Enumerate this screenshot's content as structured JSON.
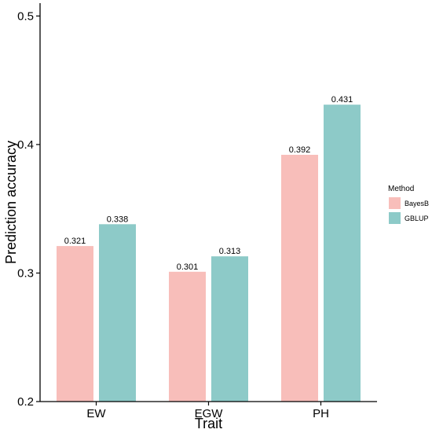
{
  "chart_data": {
    "type": "bar",
    "title": "",
    "xlabel": "Trait",
    "ylabel": "Prediction accuracy",
    "categories": [
      "EW",
      "EGW",
      "PH"
    ],
    "series": [
      {
        "name": "BayesB",
        "values": [
          0.321,
          0.301,
          0.392
        ],
        "color": "#F8BEBA"
      },
      {
        "name": "GBLUP",
        "values": [
          0.338,
          0.313,
          0.431
        ],
        "color": "#8DCAC8"
      }
    ],
    "data_labels": [
      [
        "0.321",
        "0.301",
        "0.392"
      ],
      [
        "0.338",
        "0.313",
        "0.431"
      ]
    ],
    "ylim": [
      0.2,
      0.51
    ],
    "yticks": [
      0.2,
      0.3,
      0.4,
      0.5
    ],
    "ytick_labels": [
      "0.2",
      "0.3",
      "0.4",
      "0.5"
    ],
    "grid": false,
    "legend": {
      "title": "Method",
      "position": "right"
    }
  }
}
